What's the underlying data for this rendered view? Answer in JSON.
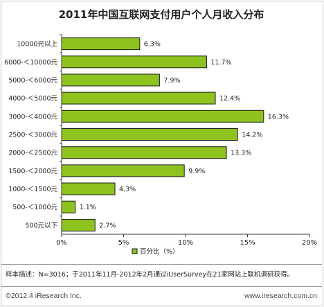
{
  "chart_data": {
    "type": "bar",
    "orientation": "horizontal",
    "title": "2011年中国互联网支付用户个人月收入分布",
    "categories": [
      "10000元以上",
      "6000-＜10000元",
      "5000-＜6000元",
      "4000-＜5000元",
      "3000-＜4000元",
      "2500-＜3000元",
      "2000-＜2500元",
      "1500-＜2000元",
      "1000-＜1500元",
      "500-＜1000元",
      "500元以下"
    ],
    "values": [
      6.3,
      11.7,
      7.9,
      12.4,
      16.3,
      14.2,
      13.3,
      9.9,
      4.3,
      1.1,
      2.7
    ],
    "value_labels": [
      "6.3%",
      "11.7%",
      "7.9%",
      "12.4%",
      "16.3%",
      "14.2%",
      "13.3%",
      "9.9%",
      "4.3%",
      "1.1%",
      "2.7%"
    ],
    "xlim": [
      0,
      20
    ],
    "x_ticks": [
      "0%",
      "5%",
      "10%",
      "15%",
      "20%"
    ],
    "x_tick_values": [
      0,
      5,
      10,
      15,
      20
    ],
    "legend": "百分比（%）",
    "legend_position": "bottom-center",
    "grid": false,
    "bar_color": "#8ec21f"
  },
  "footer": {
    "note": "样本描述：N=3016；于2011年11月-2012年2月通过iUserSurvey在21家网站上联机调研获得。",
    "copyright": "©2012.4 iResearch Inc.",
    "site": "www.iresearch.com.cn"
  }
}
